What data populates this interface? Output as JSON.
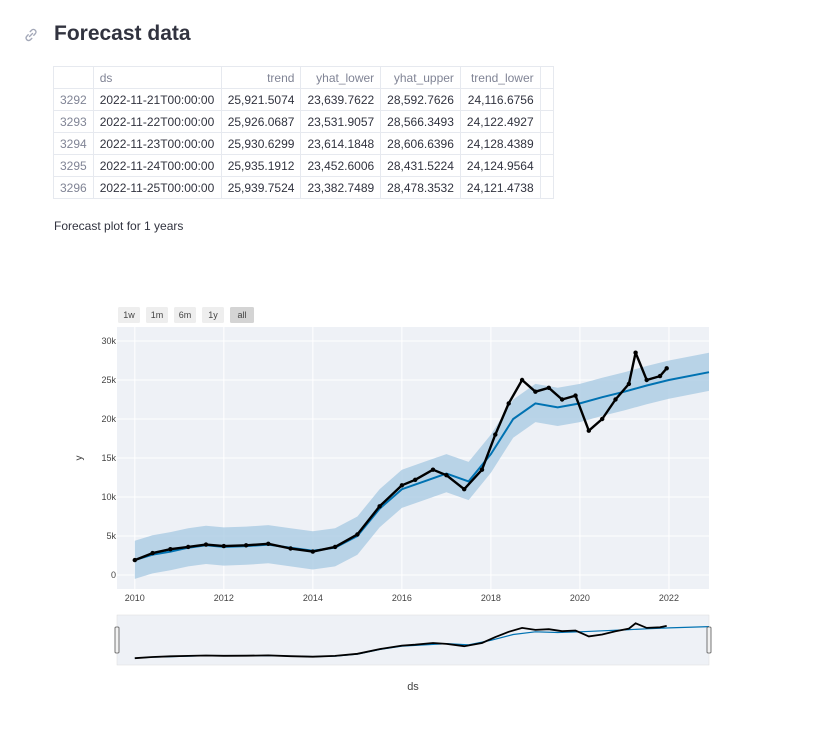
{
  "page": {
    "title": "Forecast data",
    "caption": "Forecast plot for 1 years"
  },
  "table": {
    "columns": [
      "",
      "ds",
      "trend",
      "yhat_lower",
      "yhat_upper",
      "trend_lower"
    ],
    "rows": [
      {
        "index": "3292",
        "ds": "2022-11-21T00:00:00",
        "trend": "25,921.5074",
        "yhat_lower": "23,639.7622",
        "yhat_upper": "28,592.7626",
        "trend_lower": "24,116.6756"
      },
      {
        "index": "3293",
        "ds": "2022-11-22T00:00:00",
        "trend": "25,926.0687",
        "yhat_lower": "23,531.9057",
        "yhat_upper": "28,566.3493",
        "trend_lower": "24,122.4927"
      },
      {
        "index": "3294",
        "ds": "2022-11-23T00:00:00",
        "trend": "25,930.6299",
        "yhat_lower": "23,614.1848",
        "yhat_upper": "28,606.6396",
        "trend_lower": "24,128.4389"
      },
      {
        "index": "3295",
        "ds": "2022-11-24T00:00:00",
        "trend": "25,935.1912",
        "yhat_lower": "23,452.6006",
        "yhat_upper": "28,431.5224",
        "trend_lower": "24,124.9564"
      },
      {
        "index": "3296",
        "ds": "2022-11-25T00:00:00",
        "trend": "25,939.7524",
        "yhat_lower": "23,382.7489",
        "yhat_upper": "28,478.3532",
        "trend_lower": "24,121.4738"
      }
    ]
  },
  "range_buttons": [
    "1w",
    "1m",
    "6m",
    "1y",
    "all"
  ],
  "active_range": "all",
  "chart_data": {
    "type": "line",
    "xlabel": "ds",
    "ylabel": "y",
    "xlim": [
      2009.6,
      2022.9
    ],
    "ylim": [
      -1800,
      31800
    ],
    "x_ticks": [
      2010,
      2012,
      2014,
      2016,
      2018,
      2020,
      2022
    ],
    "x_tick_labels": [
      "2010",
      "2012",
      "2014",
      "2016",
      "2018",
      "2020",
      "2022"
    ],
    "y_ticks": [
      0,
      5000,
      10000,
      15000,
      20000,
      25000,
      30000
    ],
    "y_tick_labels": [
      "0",
      "5k",
      "10k",
      "15k",
      "20k",
      "25k",
      "30k"
    ],
    "grid": true,
    "colors": {
      "actual": "#000000",
      "forecast": "#0072b2",
      "interval": "#a6c8e2",
      "plot_bg": "#eef1f6"
    },
    "series": [
      {
        "values": [
          [
            2010.0,
            1900
          ],
          [
            2010.4,
            2600
          ],
          [
            2010.8,
            3000
          ],
          [
            2011.2,
            3500
          ],
          [
            2011.6,
            3800
          ],
          [
            2012.0,
            3600
          ],
          [
            2012.5,
            3700
          ],
          [
            2013.0,
            3900
          ],
          [
            2013.5,
            3500
          ],
          [
            2014.0,
            3100
          ],
          [
            2014.5,
            3500
          ],
          [
            2015.0,
            5000
          ],
          [
            2015.5,
            8500
          ],
          [
            2016.0,
            11000
          ],
          [
            2016.5,
            12000
          ],
          [
            2017.0,
            13000
          ],
          [
            2017.5,
            12000
          ],
          [
            2018.0,
            15500
          ],
          [
            2018.5,
            20000
          ],
          [
            2019.0,
            22000
          ],
          [
            2019.5,
            21500
          ],
          [
            2020.0,
            22000
          ],
          [
            2020.5,
            22800
          ],
          [
            2021.0,
            23500
          ],
          [
            2021.5,
            24300
          ],
          [
            2022.0,
            25000
          ],
          [
            2022.9,
            26000
          ]
        ]
      },
      {
        "values": [
          [
            2010.0,
            1900
          ],
          [
            2010.4,
            2800
          ],
          [
            2010.8,
            3300
          ],
          [
            2011.2,
            3600
          ],
          [
            2011.6,
            3900
          ],
          [
            2012.0,
            3700
          ],
          [
            2012.5,
            3800
          ],
          [
            2013.0,
            4000
          ],
          [
            2013.5,
            3400
          ],
          [
            2014.0,
            3000
          ],
          [
            2014.5,
            3600
          ],
          [
            2015.0,
            5200
          ],
          [
            2015.5,
            8800
          ],
          [
            2016.0,
            11500
          ],
          [
            2016.3,
            12200
          ],
          [
            2016.7,
            13500
          ],
          [
            2017.0,
            12800
          ],
          [
            2017.4,
            11000
          ],
          [
            2017.8,
            13500
          ],
          [
            2018.1,
            18000
          ],
          [
            2018.4,
            22000
          ],
          [
            2018.7,
            25000
          ],
          [
            2019.0,
            23500
          ],
          [
            2019.3,
            24000
          ],
          [
            2019.6,
            22500
          ],
          [
            2019.9,
            23000
          ],
          [
            2020.2,
            18500
          ],
          [
            2020.5,
            20000
          ],
          [
            2020.8,
            22500
          ],
          [
            2021.1,
            24500
          ],
          [
            2021.25,
            28500
          ],
          [
            2021.5,
            25000
          ],
          [
            2021.8,
            25500
          ],
          [
            2021.95,
            26500
          ]
        ]
      }
    ],
    "interval_band": {
      "lower_offset": 2400,
      "upper_offset": 2500
    }
  }
}
